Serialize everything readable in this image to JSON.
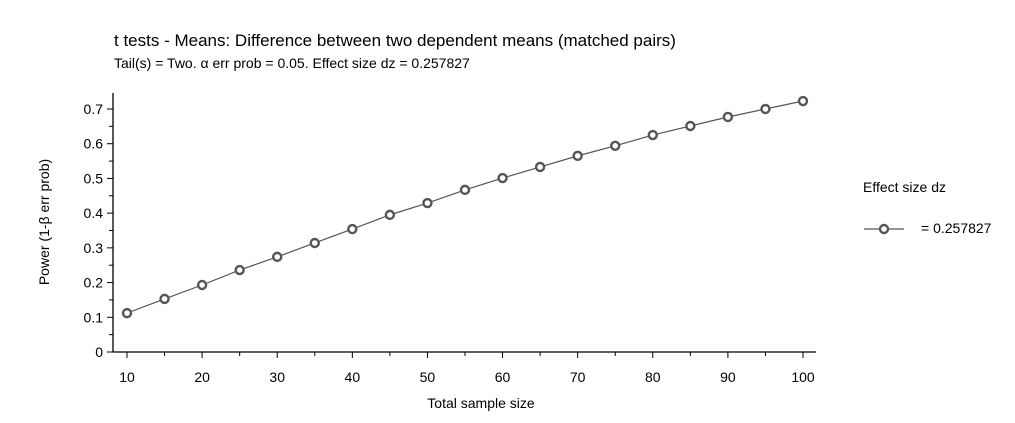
{
  "chart_data": {
    "type": "line",
    "title": "t tests - Means: Difference between two dependent means (matched pairs)",
    "subtitle": "Tail(s) = Two. α err prob = 0.05. Effect size dz = 0.257827",
    "xlabel": "Total sample size",
    "ylabel": "Power (1-β err prob)",
    "xlim": [
      8,
      101.5
    ],
    "ylim": [
      0,
      0.74
    ],
    "xticks": [
      10,
      20,
      30,
      40,
      50,
      60,
      70,
      80,
      90,
      100
    ],
    "xtick_labels": [
      "10",
      "20",
      "30",
      "40",
      "50",
      "60",
      "70",
      "80",
      "90",
      "100"
    ],
    "yticks": [
      0,
      0.1,
      0.2,
      0.3,
      0.4,
      0.5,
      0.6,
      0.7
    ],
    "ytick_labels": [
      "0",
      "0.1",
      "0.2",
      "0.3",
      "0.4",
      "0.5",
      "0.6",
      "0.7"
    ],
    "grid": false,
    "legend": {
      "title": "Effect size dz",
      "placement": "right",
      "entries": [
        "= 0.257827"
      ]
    },
    "series": [
      {
        "name": "= 0.257827",
        "color": "#555555",
        "marker": "open-circle",
        "x": [
          10,
          15,
          20,
          25,
          30,
          35,
          40,
          45,
          50,
          55,
          60,
          65,
          70,
          75,
          80,
          85,
          90,
          95,
          100
        ],
        "y": [
          0.112,
          0.153,
          0.193,
          0.236,
          0.274,
          0.314,
          0.354,
          0.395,
          0.429,
          0.467,
          0.501,
          0.533,
          0.565,
          0.594,
          0.625,
          0.651,
          0.677,
          0.7,
          0.723
        ]
      }
    ]
  }
}
